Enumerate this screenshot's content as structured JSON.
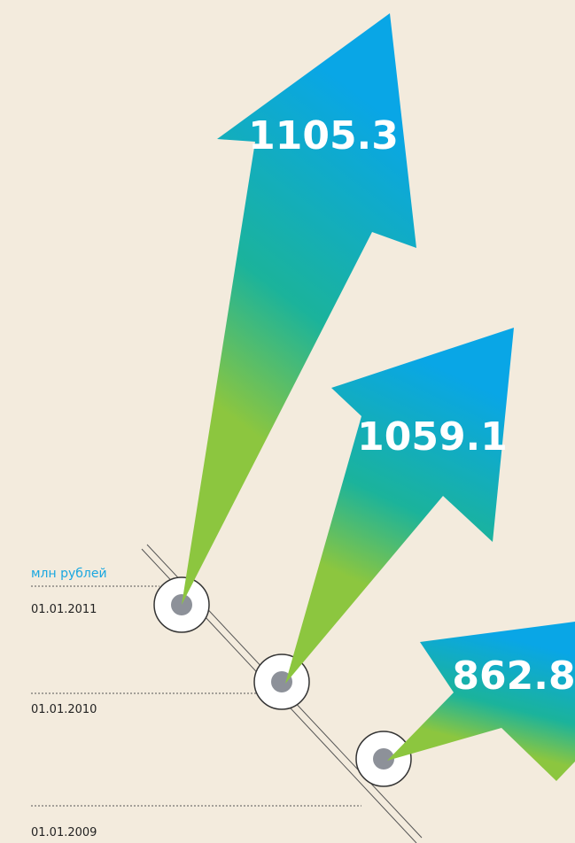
{
  "chart_data": {
    "type": "arrow",
    "unit": "млн рублей",
    "categories": [
      "01.01.2011",
      "01.01.2010",
      "01.01.2009"
    ],
    "values": [
      1105.3,
      1059.1,
      862.8
    ]
  }
}
